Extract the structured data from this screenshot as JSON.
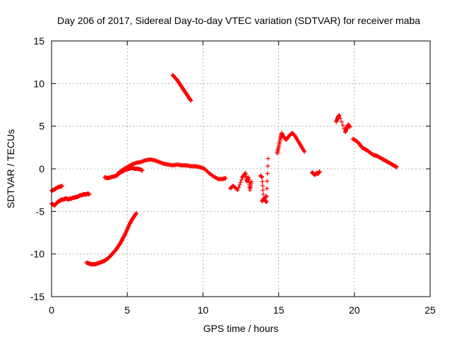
{
  "chart_data": {
    "type": "scatter",
    "title": "Day 206 of 2017, Sidereal Day-to-day VTEC variation (SDTVAR) for receiver maba",
    "xlabel": "GPS time / hours",
    "ylabel": "SDTVAR / TECUs",
    "xlim": [
      0,
      25
    ],
    "ylim": [
      -15,
      15
    ],
    "xticks": [
      0,
      5,
      10,
      15,
      20,
      25
    ],
    "yticks": [
      -15,
      -10,
      -5,
      0,
      5,
      10,
      15
    ],
    "xtick_labels": [
      "0",
      "5",
      "10",
      "15",
      "20",
      "25"
    ],
    "ytick_labels": [
      "-15",
      "-10",
      "-5",
      "0",
      "5",
      "10",
      "15"
    ],
    "grid": true,
    "marker": "plus",
    "color": "#ff0000",
    "segments": [
      {
        "x": [
          0.0,
          0.1,
          0.2,
          0.3,
          0.4,
          0.5,
          0.6,
          0.7
        ],
        "y": [
          -2.6,
          -2.5,
          -2.4,
          -2.3,
          -2.2,
          -2.1,
          -2.1,
          -2.0
        ]
      },
      {
        "x": [
          0.0,
          0.1,
          0.2,
          0.3,
          0.4,
          0.5,
          0.6,
          0.7,
          0.8,
          0.9,
          1.0,
          1.1,
          1.2,
          1.3,
          1.4,
          1.5,
          1.6,
          1.7,
          1.8,
          1.9,
          2.0,
          2.1,
          2.2,
          2.3,
          2.4,
          2.5
        ],
        "y": [
          -4.1,
          -4.2,
          -4.3,
          -4.1,
          -3.9,
          -3.8,
          -3.7,
          -3.6,
          -3.6,
          -3.5,
          -3.5,
          -3.6,
          -3.5,
          -3.5,
          -3.4,
          -3.4,
          -3.3,
          -3.3,
          -3.2,
          -3.1,
          -3.1,
          -3.0,
          -3.0,
          -3.0,
          -2.9,
          -3.0
        ]
      },
      {
        "x": [
          2.3,
          2.45,
          2.6,
          2.75,
          2.9,
          3.05,
          3.2,
          3.35,
          3.5,
          3.65,
          3.8,
          3.95,
          4.1,
          4.25,
          4.4,
          4.55,
          4.7,
          4.85,
          5.0,
          5.15,
          5.3,
          5.45,
          5.6
        ],
        "y": [
          -11.0,
          -11.1,
          -11.2,
          -11.2,
          -11.2,
          -11.1,
          -11.0,
          -10.9,
          -10.8,
          -10.6,
          -10.4,
          -10.1,
          -9.8,
          -9.5,
          -9.1,
          -8.7,
          -8.2,
          -7.7,
          -7.1,
          -6.5,
          -6.0,
          -5.6,
          -5.2
        ]
      },
      {
        "x": [
          3.5,
          3.7,
          3.9,
          4.1,
          4.3,
          4.5,
          4.7,
          4.9,
          5.1,
          5.3,
          5.5,
          5.7,
          5.9,
          6.0
        ],
        "y": [
          -1.0,
          -1.1,
          -1.0,
          -0.9,
          -0.8,
          -0.5,
          -0.3,
          -0.1,
          0.0,
          0.1,
          0.0,
          0.0,
          -0.1,
          -0.2
        ]
      },
      {
        "x": [
          4.4,
          4.7,
          5.0,
          5.3,
          5.6,
          5.9,
          6.2,
          6.5,
          6.8,
          7.1,
          7.4,
          7.7,
          8.0,
          8.3,
          8.6,
          8.9,
          9.2,
          9.5,
          9.8,
          10.1,
          10.4,
          10.7,
          11.0,
          11.3,
          11.5
        ],
        "y": [
          -0.5,
          -0.1,
          0.2,
          0.5,
          0.7,
          0.8,
          1.0,
          1.1,
          1.0,
          0.8,
          0.6,
          0.5,
          0.4,
          0.5,
          0.4,
          0.4,
          0.3,
          0.3,
          0.2,
          0.0,
          -0.5,
          -0.9,
          -1.2,
          -1.2,
          -1.1
        ]
      },
      {
        "x": [
          8.0,
          8.15,
          8.3,
          8.45,
          8.6,
          8.75,
          8.9,
          9.05,
          9.2
        ],
        "y": [
          11.0,
          10.7,
          10.4,
          10.0,
          9.6,
          9.2,
          8.8,
          8.4,
          8.0
        ]
      },
      {
        "x": [
          11.8,
          12.0,
          12.3,
          12.6,
          12.8,
          12.9,
          13.0,
          13.1,
          13.2
        ],
        "y": [
          -2.3,
          -2.0,
          -2.5,
          -1.0,
          -0.5,
          -1.5,
          -1.0,
          -2.5,
          -1.5
        ]
      },
      {
        "x": [
          13.8,
          13.9,
          14.0,
          14.1,
          14.2,
          13.9,
          14.0,
          14.2,
          14.3
        ],
        "y": [
          -0.8,
          -1.0,
          -3.5,
          -3.7,
          -3.9,
          -3.8,
          -3.6,
          -3.2,
          1.2
        ]
      },
      {
        "x": [
          14.9,
          15.0,
          15.1,
          15.2,
          15.3,
          15.5,
          15.7,
          15.9,
          16.1,
          16.3,
          16.5,
          16.7
        ],
        "y": [
          1.8,
          2.6,
          3.5,
          4.2,
          3.8,
          3.4,
          3.9,
          4.2,
          3.8,
          3.2,
          2.6,
          2.0
        ]
      },
      {
        "x": [
          17.2,
          17.3,
          17.4,
          17.5,
          17.6,
          17.7
        ],
        "y": [
          -0.4,
          -0.6,
          -0.7,
          -0.5,
          -0.6,
          -0.3
        ]
      },
      {
        "x": [
          18.8,
          18.9,
          19.0,
          19.4,
          19.5,
          19.6,
          19.7
        ],
        "y": [
          5.5,
          6.0,
          6.3,
          4.3,
          4.8,
          5.2,
          4.9
        ]
      },
      {
        "x": [
          19.9,
          20.1,
          20.3,
          20.5,
          20.7,
          20.9,
          21.1,
          21.3,
          21.5,
          21.7,
          21.9,
          22.1,
          22.3,
          22.5,
          22.7,
          22.8
        ],
        "y": [
          3.5,
          3.3,
          3.0,
          2.5,
          2.3,
          2.1,
          1.8,
          1.6,
          1.5,
          1.3,
          1.1,
          0.9,
          0.7,
          0.5,
          0.3,
          0.2
        ]
      }
    ]
  }
}
